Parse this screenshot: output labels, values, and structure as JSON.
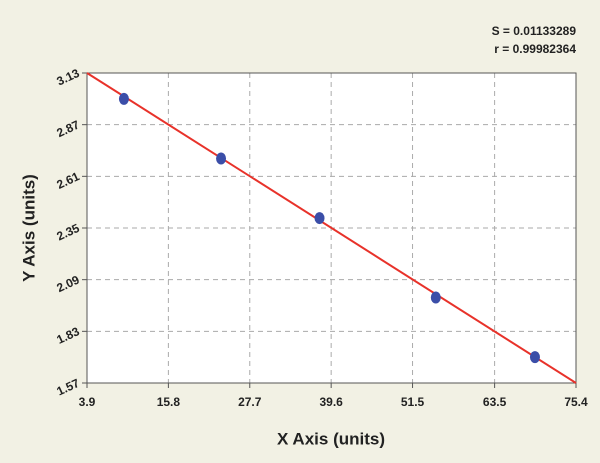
{
  "chart_data": {
    "type": "scatter",
    "x_label": "X Axis (units)",
    "y_label": "Y Axis (units)",
    "annotations": [
      "S = 0.01133289",
      "r = 0.99982364"
    ],
    "x": [
      9.3,
      23.5,
      37.9,
      54.9,
      69.4
    ],
    "series": [
      {
        "color": "#3b4ea8",
        "values": [
          3.0,
          2.7,
          2.4,
          2.0,
          1.7
        ]
      }
    ],
    "fit_line": {
      "color": "#e8322a",
      "x": [
        3.9,
        75.4
      ],
      "values": [
        3.13,
        1.57
      ]
    },
    "xlim": [
      3.9,
      75.4
    ],
    "xticks": [
      3.9,
      15.8,
      27.7,
      39.6,
      51.5,
      63.5,
      75.4
    ],
    "ylim": [
      1.57,
      3.13
    ],
    "yticks": [
      1.57,
      1.83,
      2.09,
      2.35,
      2.61,
      2.87,
      3.13
    ],
    "grid": true
  }
}
